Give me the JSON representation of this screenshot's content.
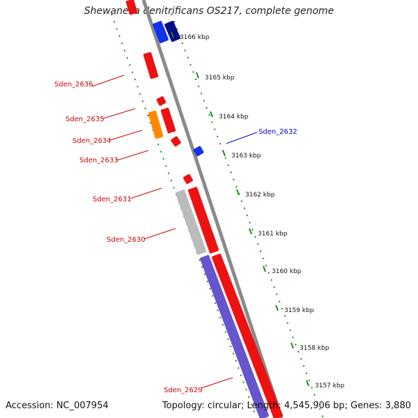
{
  "title": "Shewanella denitrificans OS217, complete genome",
  "footer": {
    "accession": "Accession: NC_007954",
    "summary": "Topology: circular; Length: 4,545,906 bp; Genes: 3,880"
  },
  "colors": {
    "backbone": "#8a8a8a",
    "tick_green": "#1a8a1a",
    "label_red": "#cc0000",
    "label_blue": "#0000cc",
    "gene_red": "#ee1111",
    "gene_blue": "#1133ee",
    "gene_navy": "#0a0a88",
    "gene_orange": "#ff8800",
    "gene_gray": "#bbbbbb",
    "gene_purple": "#6655cc"
  },
  "kbp_ticks": [
    "3166 kbp",
    "3165 kbp",
    "3164 kbp",
    "3163 kbp",
    "3162 kbp",
    "3161 kbp",
    "3160 kbp",
    "3159 kbp",
    "3158 kbp",
    "3157 kbp"
  ],
  "gene_labels": [
    {
      "name": "Sden_2636",
      "color": "red"
    },
    {
      "name": "Sden_2635",
      "color": "red"
    },
    {
      "name": "Sden_2634",
      "color": "red"
    },
    {
      "name": "Sden_2633",
      "color": "red"
    },
    {
      "name": "Sden_2632",
      "color": "blue"
    },
    {
      "name": "Sden_2631",
      "color": "red"
    },
    {
      "name": "Sden_2630",
      "color": "red"
    },
    {
      "name": "Sden_2629",
      "color": "red"
    }
  ]
}
